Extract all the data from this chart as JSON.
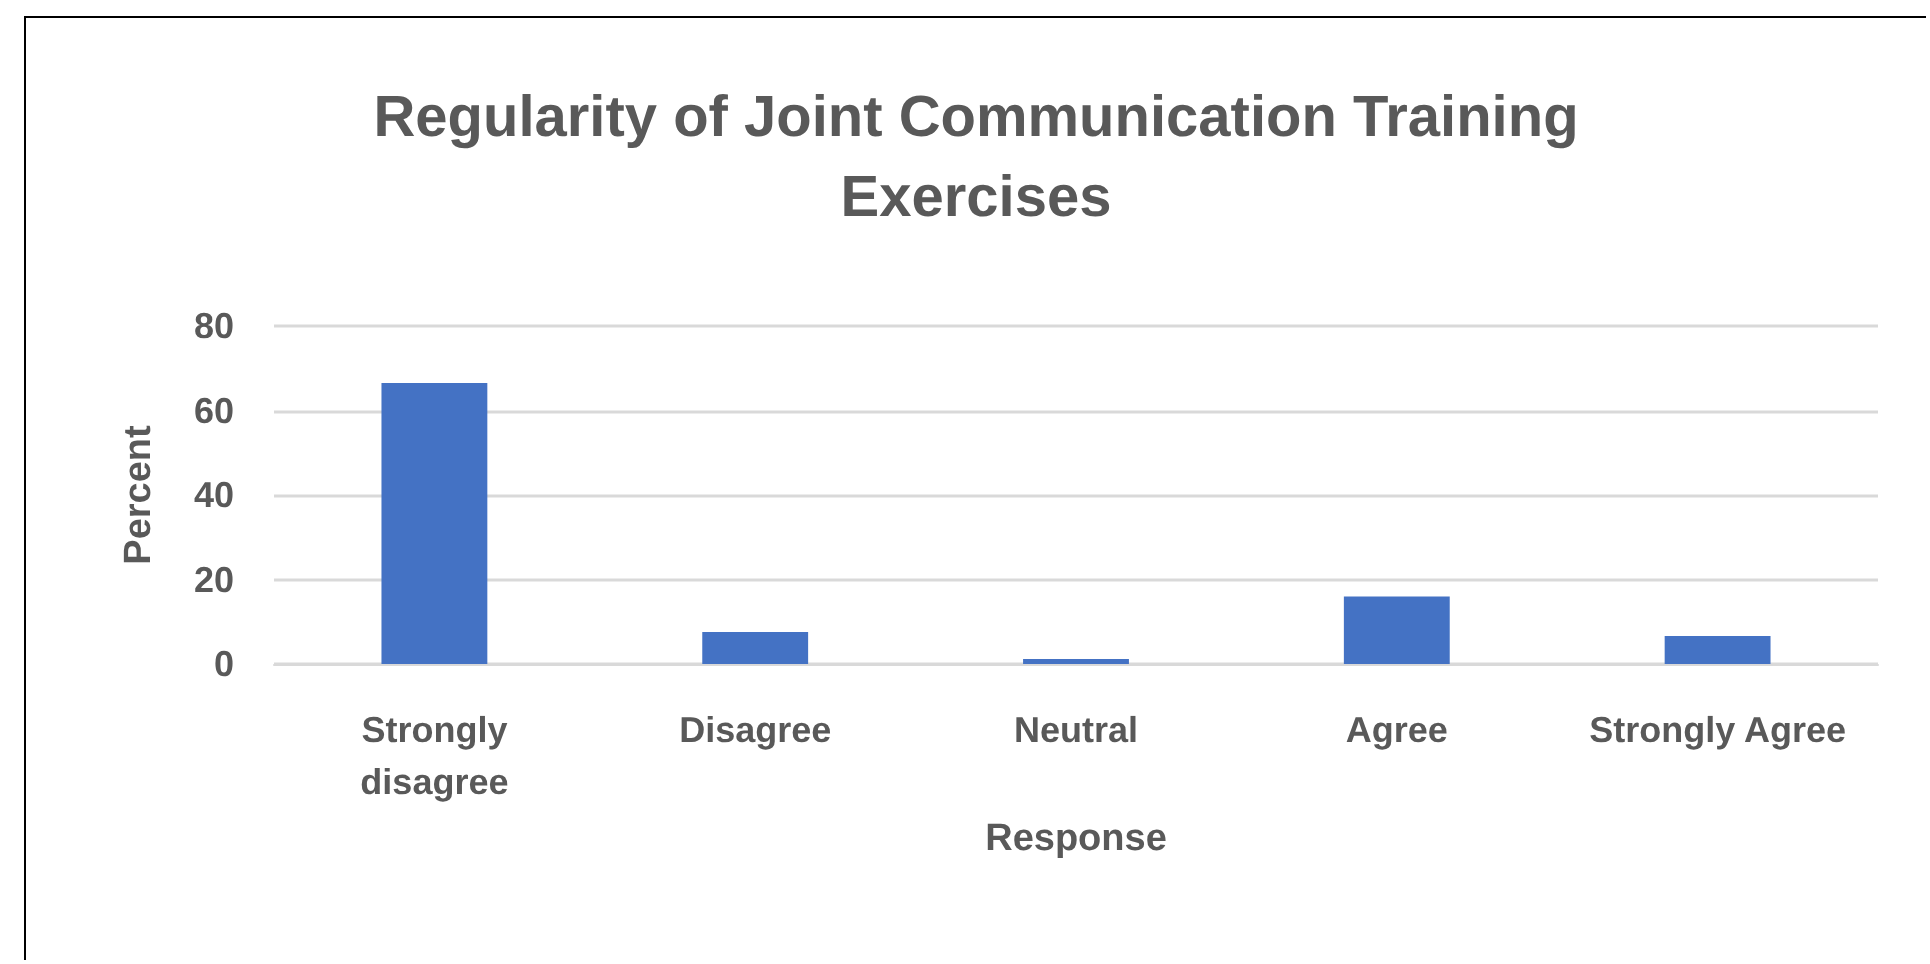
{
  "chart_data": {
    "type": "bar",
    "title": "Regularity of Joint Communication Training\nExercises",
    "xlabel": "Response",
    "ylabel": "Percent",
    "categories": [
      "Strongly\ndisagree",
      "Disagree",
      "Neutral",
      "Agree",
      "Strongly Agree"
    ],
    "values": [
      66.5,
      7.6,
      1.2,
      16,
      6.6
    ],
    "color": "#4472c4",
    "ylim": [
      0,
      80
    ],
    "yticks": [
      0,
      20,
      40,
      60,
      80
    ],
    "grid": "y"
  }
}
